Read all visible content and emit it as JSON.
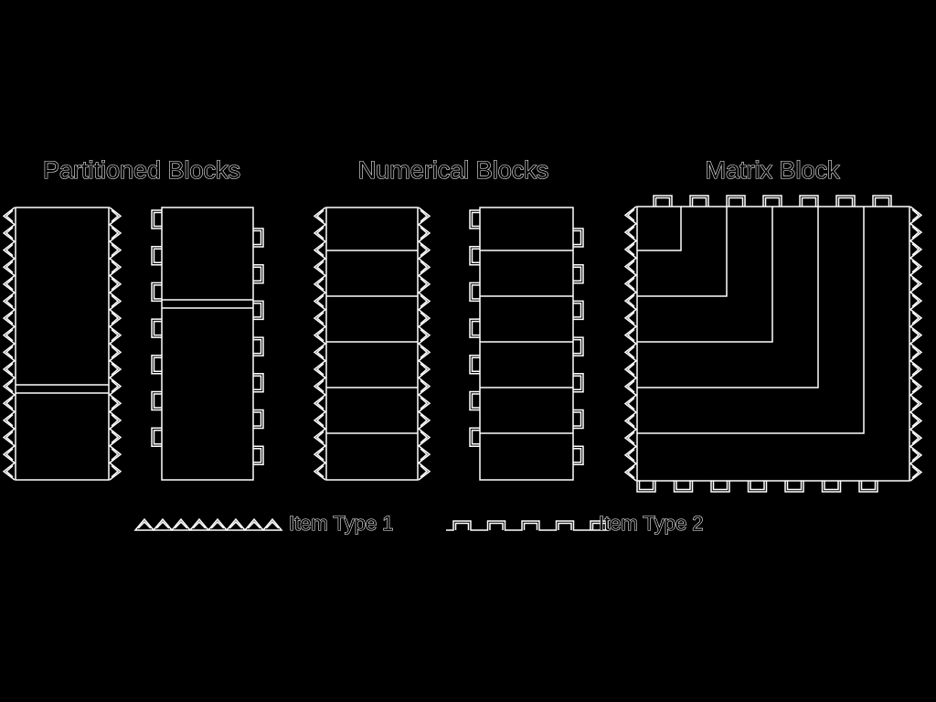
{
  "titles": {
    "partitioned": "Partitioned Blocks",
    "numerical": "Numerical Blocks",
    "matrix": "Matrix Block"
  },
  "legend": {
    "type1_label": "Item Type 1",
    "type2_label": "Item Type 2"
  },
  "colors": {
    "background": "#000000",
    "line": "#ffffff"
  }
}
